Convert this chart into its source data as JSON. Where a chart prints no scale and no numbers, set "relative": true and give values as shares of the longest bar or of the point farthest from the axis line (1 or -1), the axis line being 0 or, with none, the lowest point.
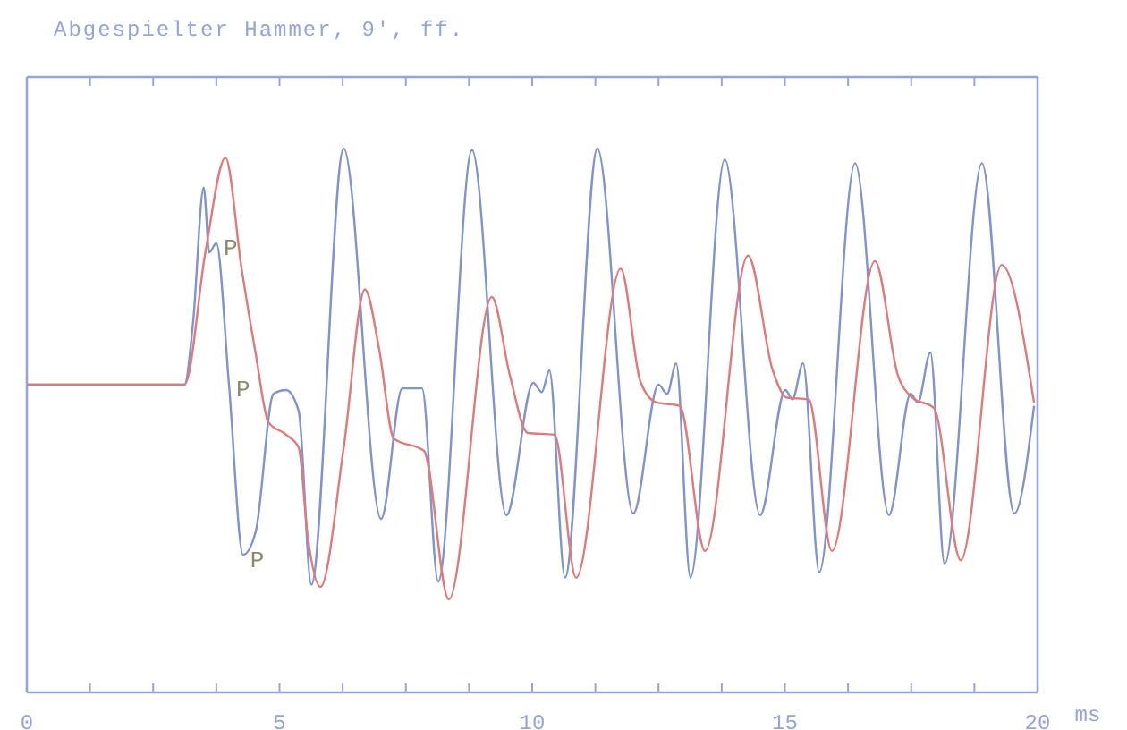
{
  "chart_data": {
    "type": "line",
    "title": "Abgespielter Hammer, 9', ff.",
    "xlabel": "ms",
    "relative": true,
    "xlim": [
      0,
      20
    ],
    "xticks": [
      0,
      {
        "value": 1.25,
        "label": null
      },
      {
        "value": 2.5,
        "label": null
      },
      {
        "value": 3.75,
        "label": null
      },
      5,
      {
        "value": 6.25,
        "label": null
      },
      {
        "value": 7.5,
        "label": null
      },
      {
        "value": 8.75,
        "label": null
      },
      10,
      {
        "value": 11.25,
        "label": null
      },
      {
        "value": 12.5,
        "label": null
      },
      {
        "value": 13.75,
        "label": null
      },
      15,
      {
        "value": 16.25,
        "label": null
      },
      {
        "value": 17.5,
        "label": null
      },
      {
        "value": 18.75,
        "label": null
      },
      20
    ],
    "grid": false,
    "marker": "none",
    "line_style": "solid",
    "series": [
      {
        "color": "#7f93d0",
        "x": [
          0,
          3.12,
          3.29,
          3.5,
          3.61,
          3.75,
          4.0,
          4.28,
          4.53,
          4.88,
          5.13,
          5.38,
          5.63,
          6.27,
          7.01,
          7.43,
          7.82,
          8.14,
          8.81,
          9.49,
          10.02,
          10.19,
          10.34,
          10.65,
          11.29,
          12.0,
          12.5,
          12.67,
          12.85,
          13.13,
          13.81,
          14.51,
          15.01,
          15.15,
          15.36,
          15.68,
          16.39,
          17.06,
          17.49,
          17.63,
          17.88,
          18.16,
          18.9,
          19.54,
          19.93
        ],
        "values": [
          0.566,
          0.566,
          0.681,
          0.928,
          0.809,
          0.826,
          0.566,
          0.253,
          0.296,
          0.549,
          0.556,
          0.517,
          0.198,
          1,
          0.319,
          0.559,
          0.559,
          0.204,
          0.997,
          0.326,
          0.569,
          0.552,
          0.592,
          0.211,
          1,
          0.329,
          0.566,
          0.549,
          0.605,
          0.211,
          0.98,
          0.326,
          0.556,
          0.539,
          0.605,
          0.221,
          0.973,
          0.326,
          0.549,
          0.533,
          0.625,
          0.236,
          0.973,
          0.329,
          0.527
        ]
      },
      {
        "color": "#e07a7a",
        "x": [
          0,
          3.12,
          3.54,
          3.93,
          4.25,
          4.53,
          4.78,
          5.13,
          5.38,
          5.56,
          5.81,
          6.27,
          6.69,
          6.97,
          7.26,
          7.86,
          8.35,
          9.2,
          9.56,
          9.91,
          10.44,
          10.87,
          11.75,
          12.14,
          12.46,
          12.92,
          13.42,
          14.27,
          14.76,
          15.04,
          15.47,
          15.93,
          16.78,
          17.24,
          17.52,
          17.95,
          18.48,
          19.29,
          19.93
        ],
        "values": [
          0.566,
          0.566,
          0.813,
          0.983,
          0.779,
          0.622,
          0.497,
          0.474,
          0.45,
          0.286,
          0.194,
          0.45,
          0.741,
          0.632,
          0.467,
          0.444,
          0.171,
          0.727,
          0.582,
          0.477,
          0.474,
          0.211,
          0.779,
          0.572,
          0.533,
          0.527,
          0.26,
          0.803,
          0.592,
          0.542,
          0.539,
          0.26,
          0.793,
          0.582,
          0.542,
          0.523,
          0.243,
          0.786,
          0.533
        ]
      }
    ],
    "annotations": [
      {
        "text": "P",
        "x": 3.75,
        "y": 0.826
      },
      {
        "text": "P",
        "x": 4.0,
        "y": 0.566
      },
      {
        "text": "P",
        "x": 4.28,
        "y": 0.253
      }
    ]
  }
}
